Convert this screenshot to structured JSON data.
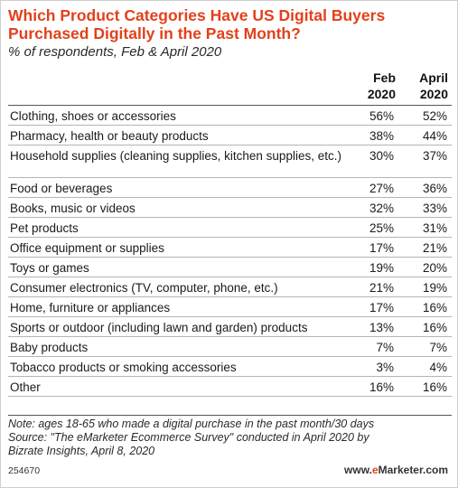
{
  "title": "Which Product Categories Have US Digital Buyers Purchased Digitally in the Past Month?",
  "subtitle": "% of respondents, Feb & April 2020",
  "columns": [
    "Feb 2020",
    "April 2020"
  ],
  "header": {
    "feb_line1": "Feb",
    "feb_line2": "2020",
    "apr_line1": "April",
    "apr_line2": "2020"
  },
  "accent_color": "#e2411b",
  "chart_data": {
    "type": "table",
    "title": "Which Product Categories Have US Digital Buyers Purchased Digitally in the Past Month?",
    "subtitle": "% of respondents, Feb & April 2020",
    "categories": [
      "Clothing, shoes or accessories",
      "Pharmacy, health or beauty products",
      "Household supplies (cleaning supplies, kitchen supplies, etc.)",
      "Food or beverages",
      "Books, music or videos",
      "Pet products",
      "Office equipment or supplies",
      "Toys or games",
      "Consumer electronics (TV, computer, phone, etc.)",
      "Home, furniture or appliances",
      "Sports or outdoor (including lawn and garden) products",
      "Baby products",
      "Tobacco products or smoking accessories",
      "Other"
    ],
    "series": [
      {
        "name": "Feb 2020",
        "values": [
          "56%",
          "38%",
          "30%",
          "27%",
          "32%",
          "25%",
          "17%",
          "19%",
          "21%",
          "17%",
          "13%",
          "7%",
          "3%",
          "16%"
        ]
      },
      {
        "name": "April 2020",
        "values": [
          "52%",
          "44%",
          "37%",
          "36%",
          "33%",
          "31%",
          "21%",
          "20%",
          "19%",
          "16%",
          "16%",
          "7%",
          "4%",
          "16%"
        ]
      }
    ]
  },
  "rows": [
    {
      "label": "Clothing, shoes or accessories",
      "feb": "56%",
      "apr": "52%"
    },
    {
      "label": "Pharmacy, health or beauty products",
      "feb": "38%",
      "apr": "44%"
    },
    {
      "label": "Household supplies (cleaning supplies, kitchen supplies, etc.)",
      "feb": "30%",
      "apr": "37%"
    },
    {
      "label": "Food or beverages",
      "feb": "27%",
      "apr": "36%"
    },
    {
      "label": "Books, music or videos",
      "feb": "32%",
      "apr": "33%"
    },
    {
      "label": "Pet products",
      "feb": "25%",
      "apr": "31%"
    },
    {
      "label": "Office equipment or supplies",
      "feb": "17%",
      "apr": "21%"
    },
    {
      "label": "Toys or games",
      "feb": "19%",
      "apr": "20%"
    },
    {
      "label": "Consumer electronics (TV, computer, phone, etc.)",
      "feb": "21%",
      "apr": "19%"
    },
    {
      "label": "Home, furniture or appliances",
      "feb": "17%",
      "apr": "16%"
    },
    {
      "label": "Sports or outdoor (including lawn and garden) products",
      "feb": "13%",
      "apr": "16%"
    },
    {
      "label": "Baby products",
      "feb": "7%",
      "apr": "7%"
    },
    {
      "label": "Tobacco products or smoking accessories",
      "feb": "3%",
      "apr": "4%"
    },
    {
      "label": "Other",
      "feb": "16%",
      "apr": "16%"
    }
  ],
  "note_line1": "Note: ages 18-65 who made a digital purchase in the past month/30 days",
  "note_line2": "Source: \"The eMarketer Ecommerce Survey\" conducted in April 2020 by",
  "note_line3": "Bizrate Insights, April 8, 2020",
  "chart_id": "254670",
  "brand_prefix": "www.",
  "brand_e": "e",
  "brand_rest": "Marketer.com"
}
